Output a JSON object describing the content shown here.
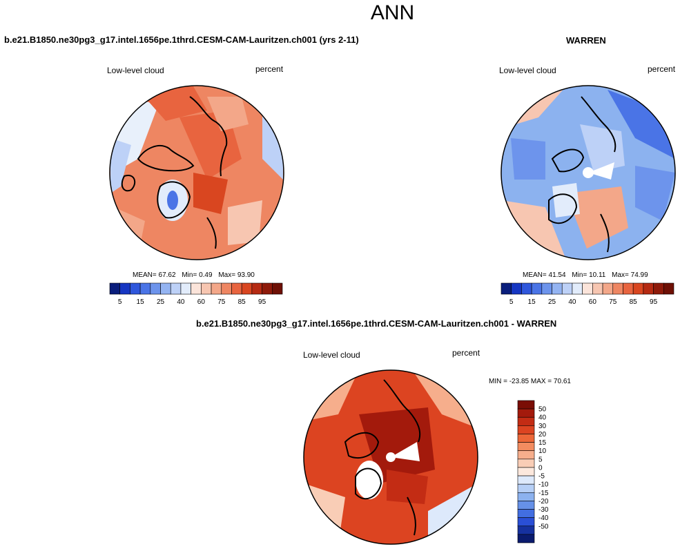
{
  "page_title": "ANN",
  "panels": {
    "model": {
      "title": "b.e21.B1850.ne30pg3_g17.intel.1656pe.1thrd.CESM-CAM-Lauritzen.ch001 (yrs 2-11)",
      "left_label": "Low-level cloud",
      "right_label": "percent",
      "stats": {
        "mean_label": "MEAN=",
        "mean": "67.62",
        "min_label": "Min=",
        "min": "0.49",
        "max_label": "Max=",
        "max": "93.90"
      }
    },
    "obs": {
      "title": "WARREN",
      "left_label": "Low-level cloud",
      "right_label": "percent",
      "stats": {
        "mean_label": "MEAN=",
        "mean": "41.54",
        "min_label": "Min=",
        "min": "10.11",
        "max_label": "Max=",
        "max": "74.99"
      }
    },
    "diff": {
      "title": "b.e21.B1850.ne30pg3_g17.intel.1656pe.1thrd.CESM-CAM-Lauritzen.ch001 - WARREN",
      "left_label": "Low-level cloud",
      "right_label": "percent",
      "minmax": "MIN = -23.85  MAX =  70.61"
    }
  },
  "chart_data": [
    {
      "type": "heatmap",
      "projection": "north-polar-stereographic",
      "title": "b.e21.B1850.ne30pg3_g17.intel.1656pe.1thrd.CESM-CAM-Lauritzen.ch001 (yrs 2-11)",
      "variable": "Low-level cloud",
      "units": "percent",
      "mean": 67.62,
      "min": 0.49,
      "max": 93.9,
      "colorbar": {
        "orientation": "horizontal",
        "tick_labels": [
          "5",
          "15",
          "25",
          "40",
          "60",
          "75",
          "85",
          "95"
        ],
        "levels": [
          5,
          10,
          15,
          20,
          25,
          30,
          40,
          50,
          60,
          65,
          70,
          75,
          80,
          85,
          90,
          95
        ],
        "colors": [
          "#0a1e7c",
          "#1636c2",
          "#2f57dc",
          "#4a74e6",
          "#6d94ec",
          "#94b4f2",
          "#bdd1f7",
          "#e2ecfb",
          "#fbe4da",
          "#f7c6b1",
          "#f3a789",
          "#ee8662",
          "#e8643f",
          "#d94620",
          "#b52a12",
          "#8e1a0a",
          "#6e1005"
        ]
      },
      "field_description": "high cloud fraction over Arctic ocean and north Atlantic, low values over Greenland interior"
    },
    {
      "type": "heatmap",
      "projection": "north-polar-stereographic",
      "title": "WARREN",
      "variable": "Low-level cloud",
      "units": "percent",
      "mean": 41.54,
      "min": 10.11,
      "max": 74.99,
      "colorbar": {
        "orientation": "horizontal",
        "tick_labels": [
          "5",
          "15",
          "25",
          "40",
          "60",
          "75",
          "85",
          "95"
        ],
        "levels": [
          5,
          10,
          15,
          20,
          25,
          30,
          40,
          50,
          60,
          65,
          70,
          75,
          80,
          85,
          90,
          95
        ]
      },
      "field_description": "lower cloud fraction over continents, missing data near pole"
    },
    {
      "type": "heatmap",
      "projection": "north-polar-stereographic",
      "title": "b.e21.B1850.ne30pg3_g17.intel.1656pe.1thrd.CESM-CAM-Lauritzen.ch001 - WARREN",
      "variable": "Low-level cloud",
      "units": "percent",
      "min": -23.85,
      "max": 70.61,
      "colorbar": {
        "orientation": "vertical",
        "tick_labels": [
          "50",
          "40",
          "30",
          "20",
          "15",
          "10",
          "5",
          "0",
          "-5",
          "-10",
          "-15",
          "-20",
          "-30",
          "-40",
          "-50"
        ],
        "colors": [
          "#7a0d05",
          "#a31a0c",
          "#c32c14",
          "#dc4421",
          "#ec6738",
          "#f38c60",
          "#f6ae8c",
          "#f9cdb6",
          "#fce8dd",
          "#dde9fb",
          "#b6cff6",
          "#8cb2ef",
          "#6691e8",
          "#426ee1",
          "#2a4fd6",
          "#16319f",
          "#0a1b6e"
        ]
      }
    }
  ]
}
